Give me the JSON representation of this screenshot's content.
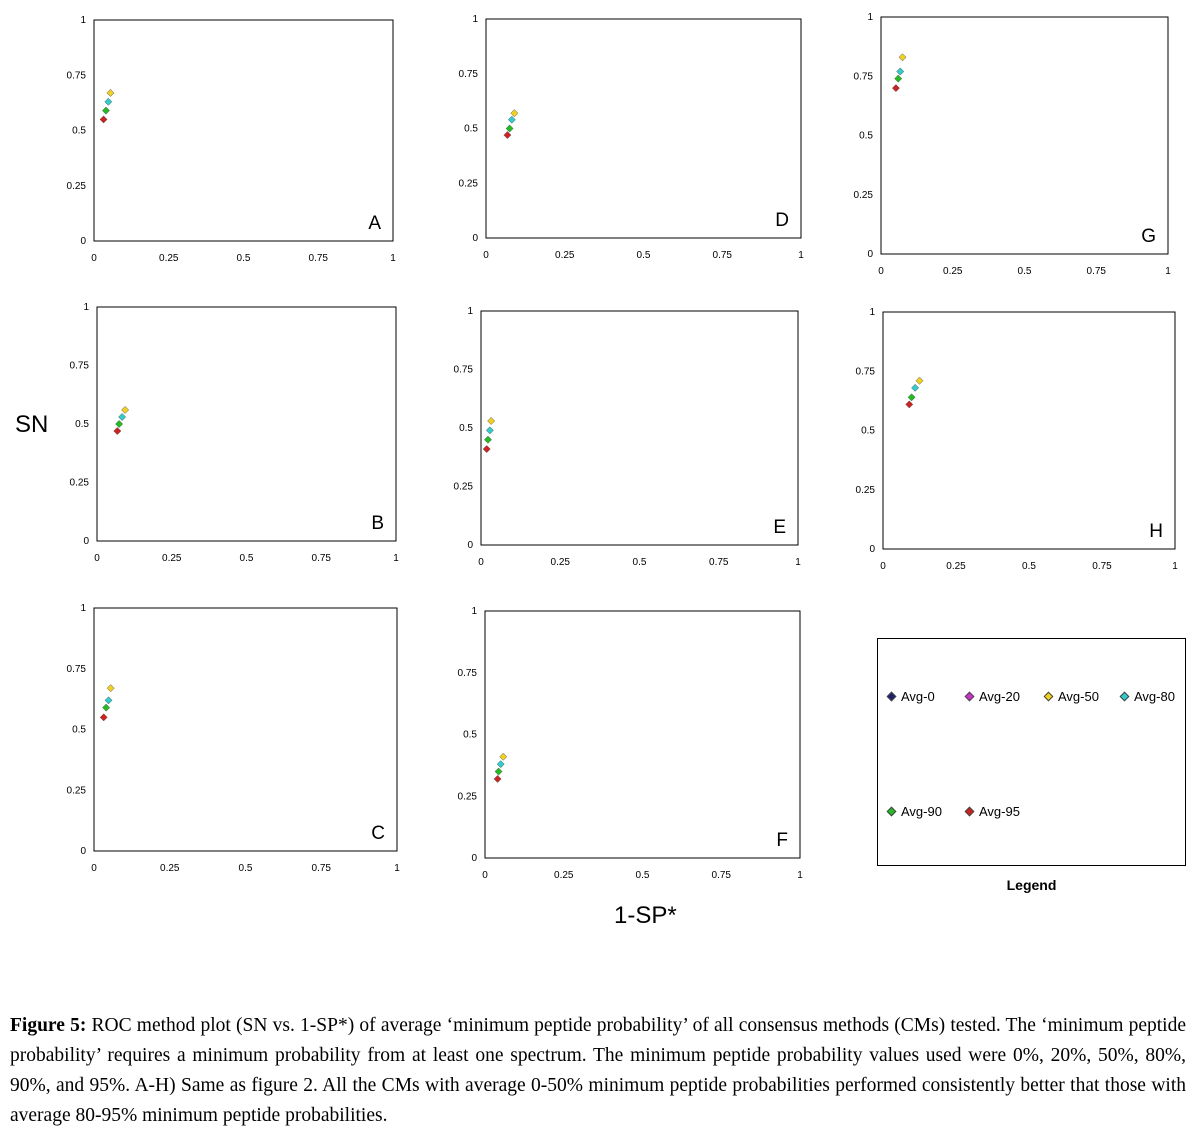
{
  "figure": {
    "y_label": "SN",
    "x_label": "1-SP*",
    "legend_title": "Legend",
    "caption_lead": "Figure 5:",
    "caption_body": " ROC method plot (SN vs. 1-SP*) of average ‘minimum peptide probability’ of all consensus methods (CMs) tested. The ‘minimum peptide probability’ requires a minimum probability from at least one spectrum. The minimum peptide probability values used were 0%, 20%, 50%, 80%, 90%, and 95%. A-H) Same as figure 2. All the CMs with average 0-50% minimum peptide probabilities performed consistently better that those with average 80-95% minimum peptide probabilities."
  },
  "legend": [
    {
      "label": "Avg-0",
      "color": "#1f1f6e"
    },
    {
      "label": "Avg-20",
      "color": "#cc33cc"
    },
    {
      "label": "Avg-50",
      "color": "#f0d020"
    },
    {
      "label": "Avg-80",
      "color": "#33cccc"
    },
    {
      "label": "Avg-90",
      "color": "#22bb22"
    },
    {
      "label": "Avg-95",
      "color": "#cc2222"
    }
  ],
  "chart_data": [
    {
      "type": "scatter",
      "panel_label": "A",
      "xlim": [
        0,
        1
      ],
      "ylim": [
        0,
        1
      ],
      "x_ticks": [
        "0",
        "0.25",
        "0.5",
        "0.75",
        "1"
      ],
      "y_ticks": [
        "0",
        "0.25",
        "0.5",
        "0.75",
        "1"
      ],
      "series": [
        {
          "name": "Avg-50",
          "x": [
            0.055
          ],
          "y": [
            0.67
          ]
        },
        {
          "name": "Avg-80",
          "x": [
            0.048
          ],
          "y": [
            0.63
          ]
        },
        {
          "name": "Avg-90",
          "x": [
            0.04
          ],
          "y": [
            0.59
          ]
        },
        {
          "name": "Avg-95",
          "x": [
            0.032
          ],
          "y": [
            0.55
          ]
        }
      ]
    },
    {
      "type": "scatter",
      "panel_label": "B",
      "xlim": [
        0,
        1
      ],
      "ylim": [
        0,
        1
      ],
      "x_ticks": [
        "0",
        "0.25",
        "0.5",
        "0.75",
        "1"
      ],
      "y_ticks": [
        "0",
        "0.25",
        "0.5",
        "0.75",
        "1"
      ],
      "series": [
        {
          "name": "Avg-50",
          "x": [
            0.094
          ],
          "y": [
            0.56
          ]
        },
        {
          "name": "Avg-80",
          "x": [
            0.084
          ],
          "y": [
            0.53
          ]
        },
        {
          "name": "Avg-90",
          "x": [
            0.074
          ],
          "y": [
            0.5
          ]
        },
        {
          "name": "Avg-95",
          "x": [
            0.068
          ],
          "y": [
            0.47
          ]
        }
      ]
    },
    {
      "type": "scatter",
      "panel_label": "C",
      "xlim": [
        0,
        1
      ],
      "ylim": [
        0,
        1
      ],
      "x_ticks": [
        "0",
        "0.25",
        "0.5",
        "0.75",
        "1"
      ],
      "y_ticks": [
        "0",
        "0.25",
        "0.5",
        "0.75",
        "1"
      ],
      "series": [
        {
          "name": "Avg-50",
          "x": [
            0.055
          ],
          "y": [
            0.67
          ]
        },
        {
          "name": "Avg-80",
          "x": [
            0.048
          ],
          "y": [
            0.62
          ]
        },
        {
          "name": "Avg-90",
          "x": [
            0.04
          ],
          "y": [
            0.59
          ]
        },
        {
          "name": "Avg-95",
          "x": [
            0.032
          ],
          "y": [
            0.55
          ]
        }
      ]
    },
    {
      "type": "scatter",
      "panel_label": "D",
      "xlim": [
        0,
        1
      ],
      "ylim": [
        0,
        1
      ],
      "x_ticks": [
        "0",
        "0.25",
        "0.5",
        "0.75",
        "1"
      ],
      "y_ticks": [
        "0",
        "0.25",
        "0.5",
        "0.75",
        "1"
      ],
      "series": [
        {
          "name": "Avg-50",
          "x": [
            0.09
          ],
          "y": [
            0.57
          ]
        },
        {
          "name": "Avg-80",
          "x": [
            0.082
          ],
          "y": [
            0.54
          ]
        },
        {
          "name": "Avg-90",
          "x": [
            0.075
          ],
          "y": [
            0.5
          ]
        },
        {
          "name": "Avg-95",
          "x": [
            0.068
          ],
          "y": [
            0.47
          ]
        }
      ]
    },
    {
      "type": "scatter",
      "panel_label": "E",
      "xlim": [
        0,
        1
      ],
      "ylim": [
        0,
        1
      ],
      "x_ticks": [
        "0",
        "0.25",
        "0.5",
        "0.75",
        "1"
      ],
      "y_ticks": [
        "0",
        "0.25",
        "0.5",
        "0.75",
        "1"
      ],
      "series": [
        {
          "name": "Avg-50",
          "x": [
            0.032
          ],
          "y": [
            0.53
          ]
        },
        {
          "name": "Avg-80",
          "x": [
            0.028
          ],
          "y": [
            0.49
          ]
        },
        {
          "name": "Avg-90",
          "x": [
            0.022
          ],
          "y": [
            0.45
          ]
        },
        {
          "name": "Avg-95",
          "x": [
            0.018
          ],
          "y": [
            0.41
          ]
        }
      ]
    },
    {
      "type": "scatter",
      "panel_label": "F",
      "xlim": [
        0,
        1
      ],
      "ylim": [
        0,
        1
      ],
      "x_ticks": [
        "0",
        "0.25",
        "0.5",
        "0.75",
        "1"
      ],
      "y_ticks": [
        "0",
        "0.25",
        "0.5",
        "0.75",
        "1"
      ],
      "series": [
        {
          "name": "Avg-50",
          "x": [
            0.058
          ],
          "y": [
            0.41
          ]
        },
        {
          "name": "Avg-80",
          "x": [
            0.05
          ],
          "y": [
            0.38
          ]
        },
        {
          "name": "Avg-90",
          "x": [
            0.043
          ],
          "y": [
            0.35
          ]
        },
        {
          "name": "Avg-95",
          "x": [
            0.04
          ],
          "y": [
            0.32
          ]
        }
      ]
    },
    {
      "type": "scatter",
      "panel_label": "G",
      "xlim": [
        0,
        1
      ],
      "ylim": [
        0,
        1
      ],
      "x_ticks": [
        "0",
        "0.25",
        "0.5",
        "0.75",
        "1"
      ],
      "y_ticks": [
        "0",
        "0.25",
        "0.5",
        "0.75",
        "1"
      ],
      "series": [
        {
          "name": "Avg-50",
          "x": [
            0.075
          ],
          "y": [
            0.83
          ]
        },
        {
          "name": "Avg-80",
          "x": [
            0.067
          ],
          "y": [
            0.77
          ]
        },
        {
          "name": "Avg-90",
          "x": [
            0.06
          ],
          "y": [
            0.74
          ]
        },
        {
          "name": "Avg-95",
          "x": [
            0.052
          ],
          "y": [
            0.7
          ]
        }
      ]
    },
    {
      "type": "scatter",
      "panel_label": "H",
      "xlim": [
        0,
        1
      ],
      "ylim": [
        0,
        1
      ],
      "x_ticks": [
        "0",
        "0.25",
        "0.5",
        "0.75",
        "1"
      ],
      "y_ticks": [
        "0",
        "0.25",
        "0.5",
        "0.75",
        "1"
      ],
      "series": [
        {
          "name": "Avg-50",
          "x": [
            0.125
          ],
          "y": [
            0.71
          ]
        },
        {
          "name": "Avg-80",
          "x": [
            0.11
          ],
          "y": [
            0.68
          ]
        },
        {
          "name": "Avg-90",
          "x": [
            0.098
          ],
          "y": [
            0.64
          ]
        },
        {
          "name": "Avg-95",
          "x": [
            0.09
          ],
          "y": [
            0.61
          ]
        }
      ]
    }
  ]
}
